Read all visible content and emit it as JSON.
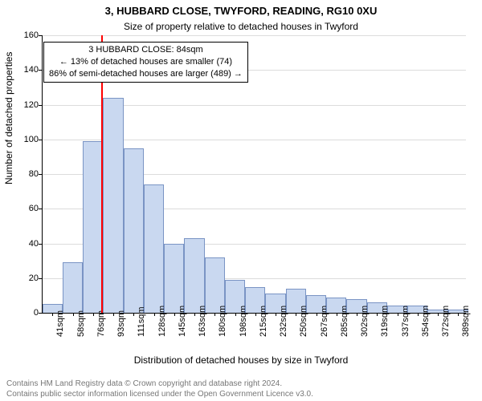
{
  "title": "3, HUBBARD CLOSE, TWYFORD, READING, RG10 0XU",
  "subtitle": "Size of property relative to detached houses in Twyford",
  "ylabel": "Number of detached properties",
  "xlabel": "Distribution of detached houses by size in Twyford",
  "footer_line1": "Contains HM Land Registry data © Crown copyright and database right 2024.",
  "footer_line2": "Contains public sector information licensed under the Open Government Licence v3.0.",
  "annotation_line1": "3 HUBBARD CLOSE: 84sqm",
  "annotation_line2": "← 13% of detached houses are smaller (74)",
  "annotation_line3": "86% of semi-detached houses are larger (489) →",
  "annotation_style": {
    "border_color": "#000000",
    "background": "#ffffff",
    "fontsize": 11
  },
  "reference_line": {
    "x_value": 84,
    "color": "#ff0000",
    "width": 2
  },
  "chart": {
    "type": "histogram",
    "bar_fill": "#c9d8f0",
    "bar_stroke": "#7a94c4",
    "background": "#ffffff",
    "grid_color": "#dcdcdc",
    "axis_color": "#000000",
    "tick_fontsize": 11,
    "title_fontsize": 13,
    "subtitle_fontsize": 12,
    "label_fontsize": 12,
    "footer_fontsize": 10,
    "xmin": 32,
    "xmax": 398,
    "ylim": [
      0,
      160
    ],
    "ytick_step": 20,
    "bin_width": 17.5,
    "bins_start": 32.5,
    "x_tick_labels": [
      "41sqm",
      "58sqm",
      "76sqm",
      "93sqm",
      "111sqm",
      "128sqm",
      "145sqm",
      "163sqm",
      "180sqm",
      "198sqm",
      "215sqm",
      "232sqm",
      "250sqm",
      "267sqm",
      "285sqm",
      "302sqm",
      "319sqm",
      "337sqm",
      "354sqm",
      "372sqm",
      "389sqm"
    ],
    "values": [
      5,
      29,
      99,
      124,
      95,
      74,
      40,
      43,
      32,
      19,
      15,
      11,
      14,
      10,
      9,
      8,
      6,
      4,
      4,
      2,
      2
    ]
  }
}
